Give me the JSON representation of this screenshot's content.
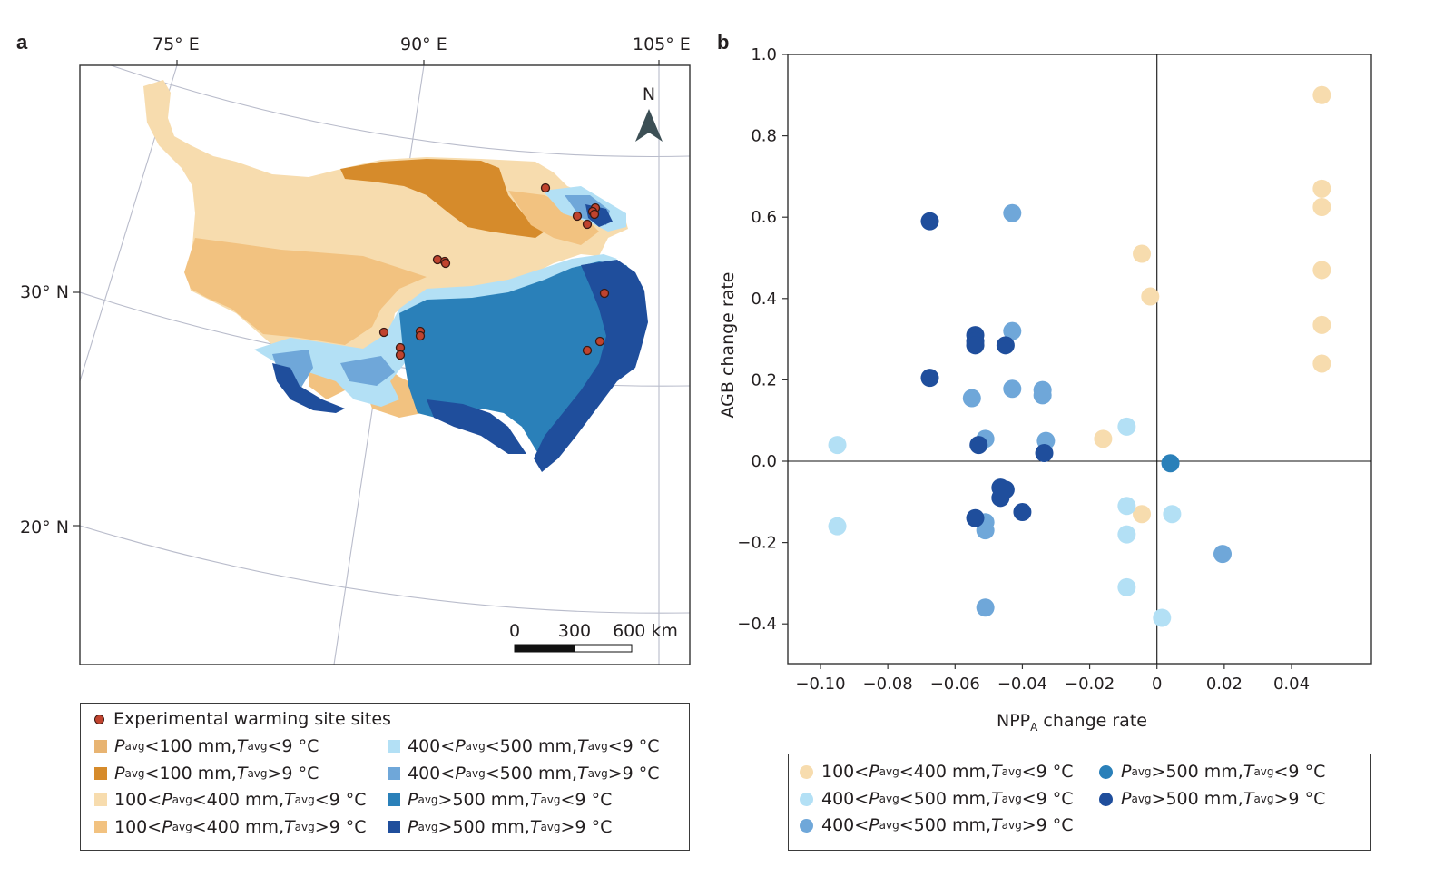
{
  "panel_a": {
    "label": "a",
    "lon_labels": [
      "75° E",
      "90° E",
      "105° E"
    ],
    "lat_labels": [
      "30° N",
      "20° N"
    ],
    "north_label": "N",
    "scale_labels": [
      "0",
      "300",
      "600 km"
    ],
    "legend": {
      "site_label": "Experimental warming site sites",
      "left_items": [
        {
          "p": "P",
          "p_sub": "avg",
          "mid": "<100 mm, ",
          "t": "T",
          "t_sub": "avg",
          "end": "<9 °C",
          "pre": "",
          "color": "#e8b472"
        },
        {
          "p": "P",
          "p_sub": "avg",
          "mid": "<100 mm, ",
          "t": "T",
          "t_sub": "avg",
          "end": ">9 °C",
          "pre": "",
          "color": "#d68b2b"
        },
        {
          "p": "P",
          "p_sub": "avg",
          "mid": "<400 mm, ",
          "t": "T",
          "t_sub": "avg",
          "end": "<9 °C",
          "pre": "100<",
          "color": "#f7dcae"
        },
        {
          "p": "P",
          "p_sub": "avg",
          "mid": "<400 mm, ",
          "t": "T",
          "t_sub": "avg",
          "end": ">9 °C",
          "pre": "100<",
          "color": "#f2c280"
        }
      ],
      "right_items": [
        {
          "p": "P",
          "p_sub": "avg",
          "mid": "<500 mm, ",
          "t": "T",
          "t_sub": "avg",
          "end": "<9 °C",
          "pre": "400<",
          "color": "#b3e0f5"
        },
        {
          "p": "P",
          "p_sub": "avg",
          "mid": "<500 mm, ",
          "t": "T",
          "t_sub": "avg",
          "end": ">9 °C",
          "pre": "400<",
          "color": "#6fa7d9"
        },
        {
          "p": "P",
          "p_sub": "avg",
          "mid": ">500 mm, ",
          "t": "T",
          "t_sub": "avg",
          "end": "<9 °C",
          "pre": "",
          "color": "#2a80b9"
        },
        {
          "p": "P",
          "p_sub": "avg",
          "mid": ">500 mm, ",
          "t": "T",
          "t_sub": "avg",
          "end": " >9 °C",
          "pre": "",
          "color": "#1f4e9c"
        }
      ]
    },
    "colors": {
      "p_lt100_t_lt9": "#e8b472",
      "p_lt100_t_gt9": "#d68b2b",
      "p_100_400_t_lt9": "#f7dcae",
      "p_100_400_t_gt9": "#f2c280",
      "p_400_500_t_lt9": "#b3e0f5",
      "p_400_500_t_gt9": "#6fa7d9",
      "p_gt500_t_lt9": "#2a80b9",
      "p_gt500_t_gt9": "#1f4e9c",
      "site": "#c0432e"
    }
  },
  "panel_b": {
    "label": "b",
    "legend": [
      {
        "pre": "100<",
        "p": "P",
        "p_sub": "avg",
        "mid": "<400 mm, ",
        "t": "T",
        "t_sub": "avg",
        "end": " <9 °C",
        "color": "#f7dcae"
      },
      {
        "pre": "400<",
        "p": "P",
        "p_sub": "avg",
        "mid": "<500 mm, ",
        "t": "T",
        "t_sub": "avg",
        "end": " <9 °C",
        "color": "#b3e0f5"
      },
      {
        "pre": "400<",
        "p": "P",
        "p_sub": "avg",
        "mid": "<500 mm, ",
        "t": "T",
        "t_sub": "avg",
        "end": " >9 °C",
        "color": "#6fa7d9"
      },
      {
        "pre": "",
        "p": "P",
        "p_sub": "avg",
        "mid": ">500 mm, ",
        "t": "T",
        "t_sub": "avg",
        "end": " <9 °C",
        "color": "#2a80b9"
      },
      {
        "pre": "",
        "p": "P",
        "p_sub": "avg",
        "mid": ">500 mm, ",
        "t": "T",
        "t_sub": "avg",
        "end": " >9 °C",
        "color": "#1f4e9c"
      }
    ]
  },
  "chart_data": {
    "type": "scatter",
    "title": "",
    "xlabel_main": "NPP",
    "xlabel_sub": "A",
    "xlabel_rest": " change rate",
    "ylabel": "AGB change rate",
    "xlim": [
      -0.11,
      0.064
    ],
    "ylim": [
      -0.5,
      1.0
    ],
    "xticks": [
      -0.1,
      -0.08,
      -0.06,
      -0.04,
      -0.02,
      0,
      0.02,
      0.04
    ],
    "xtick_labels": [
      "−0.10",
      "−0.08",
      "−0.06",
      "−0.04",
      "−0.02",
      "0",
      "0.02",
      "0.04"
    ],
    "yticks": [
      1.0,
      0.8,
      0.6,
      0.4,
      0.2,
      0.0,
      -0.2,
      -0.4
    ],
    "ytick_labels": [
      "1.0",
      "0.8",
      "0.6",
      "0.4",
      "0.2",
      "0.0",
      "−0.2",
      "−0.4"
    ],
    "series": [
      {
        "color": "#f7dcae",
        "points": [
          [
            0.049,
            0.9
          ],
          [
            0.049,
            0.67
          ],
          [
            0.049,
            0.625
          ],
          [
            0.049,
            0.47
          ],
          [
            0.049,
            0.335
          ],
          [
            0.049,
            0.24
          ],
          [
            -0.0045,
            0.51
          ],
          [
            -0.002,
            0.405
          ],
          [
            -0.016,
            0.055
          ],
          [
            -0.0045,
            -0.13
          ]
        ]
      },
      {
        "color": "#b3e0f5",
        "points": [
          [
            -0.095,
            0.04
          ],
          [
            -0.095,
            -0.16
          ],
          [
            -0.009,
            0.085
          ],
          [
            -0.009,
            -0.11
          ],
          [
            -0.009,
            -0.18
          ],
          [
            -0.009,
            -0.31
          ],
          [
            0.0045,
            -0.13
          ],
          [
            0.0015,
            -0.385
          ]
        ]
      },
      {
        "color": "#6fa7d9",
        "points": [
          [
            -0.043,
            0.61
          ],
          [
            -0.043,
            0.32
          ],
          [
            -0.043,
            0.178
          ],
          [
            -0.034,
            0.175
          ],
          [
            -0.034,
            0.162
          ],
          [
            -0.055,
            0.155
          ],
          [
            -0.051,
            0.055
          ],
          [
            -0.033,
            0.05
          ],
          [
            -0.051,
            -0.15
          ],
          [
            -0.051,
            -0.17
          ],
          [
            -0.051,
            -0.36
          ],
          [
            0.0195,
            -0.228
          ]
        ]
      },
      {
        "color": "#2a80b9",
        "points": [
          [
            0.004,
            -0.005
          ]
        ]
      },
      {
        "color": "#1f4e9c",
        "points": [
          [
            -0.0675,
            0.59
          ],
          [
            -0.0675,
            0.205
          ],
          [
            -0.054,
            0.31
          ],
          [
            -0.054,
            0.295
          ],
          [
            -0.054,
            0.285
          ],
          [
            -0.045,
            0.285
          ],
          [
            -0.053,
            0.04
          ],
          [
            -0.0335,
            0.02
          ],
          [
            -0.0465,
            -0.065
          ],
          [
            -0.045,
            -0.07
          ],
          [
            -0.0465,
            -0.09
          ],
          [
            -0.04,
            -0.125
          ],
          [
            -0.054,
            -0.14
          ]
        ]
      }
    ]
  }
}
